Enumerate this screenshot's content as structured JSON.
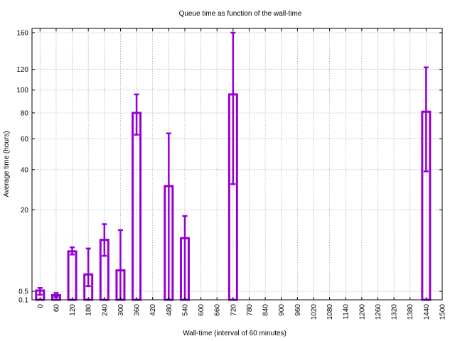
{
  "chart_data": {
    "type": "bar",
    "title": "Queue time as function of the wall-time",
    "xlabel": "Wall-time (interval of 60 minutes)",
    "ylabel": "Average time (hours)",
    "y_scale": "sqrt",
    "xlim": [
      -30,
      1500
    ],
    "ylim": [
      0.1,
      165
    ],
    "x_ticks": [
      0,
      60,
      120,
      180,
      240,
      300,
      360,
      420,
      480,
      540,
      600,
      660,
      720,
      780,
      840,
      900,
      960,
      1020,
      1080,
      1140,
      1200,
      1260,
      1320,
      1380,
      1440,
      1500
    ],
    "y_ticks": [
      0.1,
      0.5,
      20,
      40,
      60,
      80,
      100,
      120,
      160
    ],
    "grid": true,
    "bar_color": "#9400d3",
    "bars": [
      {
        "x": 0,
        "value": 0.55,
        "err_low": 0.3,
        "err_high": 0.75
      },
      {
        "x": 60,
        "value": 0.28,
        "err_low": 0.2,
        "err_high": 0.4
      },
      {
        "x": 120,
        "value": 6.5,
        "err_low": 5.8,
        "err_high": 7.5
      },
      {
        "x": 180,
        "value": 2.2,
        "err_low": 0.9,
        "err_high": 7.2
      },
      {
        "x": 240,
        "value": 9.5,
        "err_low": 5.5,
        "err_high": 14.5
      },
      {
        "x": 300,
        "value": 2.8,
        "err_low": 0.1,
        "err_high": 12.5
      },
      {
        "x": 360,
        "value": 80,
        "err_low": 63,
        "err_high": 96
      },
      {
        "x": 480,
        "value": 31,
        "err_low": 0.1,
        "err_high": 64
      },
      {
        "x": 540,
        "value": 10,
        "err_low": 0.1,
        "err_high": 17.5
      },
      {
        "x": 720,
        "value": 96,
        "err_low": 32,
        "err_high": 160
      },
      {
        "x": 1440,
        "value": 81,
        "err_low": 39,
        "err_high": 122
      }
    ]
  }
}
